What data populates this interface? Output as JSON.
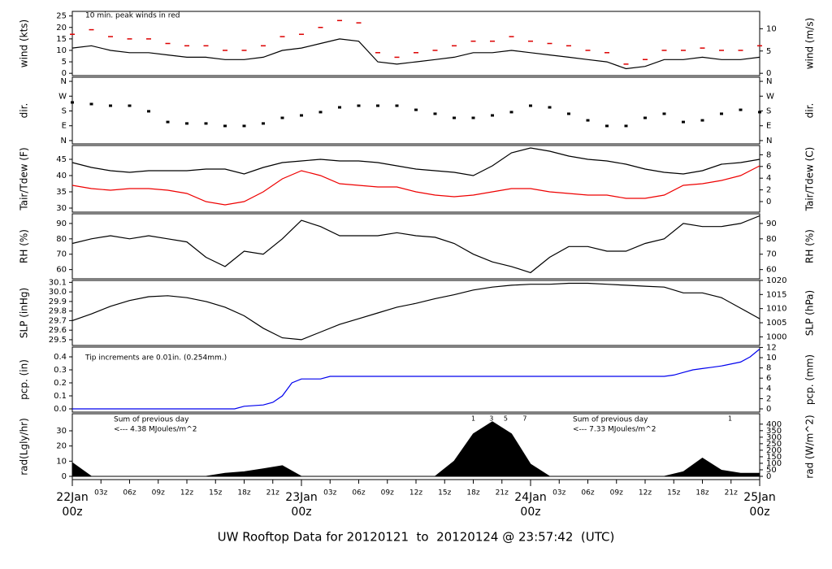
{
  "chart_data": [
    {
      "type": "line",
      "ylabel": "wind (kts)",
      "y2label": "wind (m/s)",
      "annotation": "10 min. peak winds in red",
      "annotation_color": "#dd0000",
      "xlim": [
        0,
        72
      ],
      "ylim": [
        -1,
        27
      ],
      "yticks": [
        0,
        5,
        10,
        15,
        20,
        25
      ],
      "y2lim": [
        -0.514,
        13.89
      ],
      "y2ticks": [
        0,
        5,
        10
      ],
      "x": [
        0,
        2,
        4,
        6,
        8,
        10,
        12,
        14,
        16,
        18,
        20,
        22,
        24,
        26,
        28,
        30,
        32,
        34,
        36,
        38,
        40,
        42,
        44,
        46,
        48,
        50,
        52,
        54,
        56,
        58,
        60,
        62,
        64,
        66,
        68,
        70,
        72
      ],
      "series": [
        {
          "type": "dash",
          "color": "#dd0000",
          "values": [
            17,
            19,
            16,
            15,
            15,
            13,
            12,
            12,
            10,
            10,
            12,
            16,
            17,
            20,
            23,
            22,
            9,
            7,
            9,
            10,
            12,
            14,
            14,
            16,
            14,
            13,
            12,
            10,
            9,
            4,
            6,
            10,
            10,
            11,
            10,
            10,
            12
          ]
        },
        {
          "type": "line",
          "color": "#000000",
          "values": [
            11,
            12,
            10,
            9,
            9,
            8,
            7,
            7,
            6,
            6,
            7,
            10,
            11,
            13,
            15,
            14,
            5,
            4,
            5,
            6,
            7,
            9,
            9,
            10,
            9,
            8,
            7,
            6,
            5,
            2,
            3,
            6,
            6,
            7,
            6,
            6,
            7
          ]
        }
      ]
    },
    {
      "type": "scatter",
      "ylabel": "dir.",
      "y2label": "dir.",
      "xlim": [
        0,
        72
      ],
      "ylim": [
        -20,
        385
      ],
      "yticks": [
        {
          "value": 0,
          "label": "N"
        },
        {
          "value": 90,
          "label": "E"
        },
        {
          "value": 180,
          "label": "S"
        },
        {
          "value": 270,
          "label": "W"
        },
        {
          "value": 360,
          "label": "N"
        }
      ],
      "y2lim": [
        -20,
        385
      ],
      "y2ticks": [
        {
          "value": 0,
          "label": "N"
        },
        {
          "value": 90,
          "label": "E"
        },
        {
          "value": 180,
          "label": "S"
        },
        {
          "value": 270,
          "label": "W"
        },
        {
          "value": 360,
          "label": "N"
        }
      ],
      "x": [
        0,
        2,
        4,
        6,
        8,
        10,
        12,
        14,
        16,
        18,
        20,
        22,
        24,
        26,
        28,
        30,
        32,
        34,
        36,
        38,
        40,
        42,
        44,
        46,
        48,
        50,
        52,
        54,
        56,
        58,
        60,
        62,
        64,
        66,
        68,
        70,
        72
      ],
      "series": [
        {
          "type": "dot",
          "color": "#000000",
          "values": [
            232,
            222,
            212,
            212,
            178,
            113,
            104,
            104,
            89,
            89,
            104,
            138,
            153,
            173,
            202,
            212,
            212,
            212,
            187,
            163,
            138,
            138,
            153,
            173,
            212,
            202,
            163,
            123,
            89,
            89,
            138,
            163,
            113,
            123,
            163,
            187,
            173
          ]
        }
      ]
    },
    {
      "type": "line",
      "ylabel": "Tair/Tdew (F)",
      "y2label": "Tair/Tdew (C)",
      "xlim": [
        0,
        72
      ],
      "ylim": [
        28.75,
        49.25
      ],
      "yticks": [
        30,
        35,
        40,
        45
      ],
      "y2lim": [
        -1.806,
        9.583
      ],
      "y2ticks": [
        0,
        2,
        4,
        6,
        8
      ],
      "x": [
        0,
        2,
        4,
        6,
        8,
        10,
        12,
        14,
        16,
        18,
        20,
        22,
        24,
        26,
        28,
        30,
        32,
        34,
        36,
        38,
        40,
        42,
        44,
        46,
        48,
        50,
        52,
        54,
        56,
        58,
        60,
        62,
        64,
        66,
        68,
        70,
        72
      ],
      "series": [
        {
          "type": "line",
          "color": "#000000",
          "values": [
            44,
            42.5,
            41.5,
            41,
            41.5,
            41.5,
            41.5,
            42,
            42,
            40.5,
            42.5,
            44,
            44.5,
            45,
            44.5,
            44.5,
            44,
            43,
            42,
            41.5,
            41,
            40,
            43,
            47,
            48.5,
            47.5,
            46,
            45,
            44.5,
            43.5,
            42,
            41,
            40.5,
            41.5,
            43.5,
            44,
            45
          ]
        },
        {
          "type": "line",
          "color": "#ee0000",
          "values": [
            37,
            36,
            35.5,
            36,
            36,
            35.5,
            34.5,
            32,
            31,
            32,
            35,
            39,
            41.5,
            40,
            37.5,
            37,
            36.5,
            36.5,
            35,
            34,
            33.5,
            34,
            35,
            36,
            36,
            35,
            34.5,
            34,
            34,
            33,
            33,
            34,
            37,
            37.5,
            38.5,
            40,
            43
          ]
        }
      ]
    },
    {
      "type": "line",
      "ylabel": "RH (%)",
      "y2label": "RH (%)",
      "xlim": [
        0,
        72
      ],
      "ylim": [
        54,
        96.3
      ],
      "yticks": [
        60,
        70,
        80,
        90
      ],
      "y2lim": [
        54,
        96.3
      ],
      "y2ticks": [
        60,
        70,
        80,
        90
      ],
      "x": [
        0,
        2,
        4,
        6,
        8,
        10,
        12,
        14,
        16,
        18,
        20,
        22,
        24,
        26,
        28,
        30,
        32,
        34,
        36,
        38,
        40,
        42,
        44,
        46,
        48,
        50,
        52,
        54,
        56,
        58,
        60,
        62,
        64,
        66,
        68,
        70,
        72
      ],
      "series": [
        {
          "type": "line",
          "color": "#000000",
          "values": [
            77,
            80,
            82,
            80,
            82,
            80,
            78,
            68,
            62,
            72,
            70,
            80,
            92,
            88,
            82,
            82,
            82,
            84,
            82,
            81,
            77,
            70,
            65,
            62,
            58,
            68,
            75,
            75,
            72,
            72,
            77,
            80,
            90,
            88,
            88,
            90,
            95
          ]
        }
      ]
    },
    {
      "type": "line",
      "ylabel": "SLP (inHg)",
      "y2label": "SLP (hPa)",
      "xlim": [
        0,
        72
      ],
      "ylim": [
        29.44,
        30.12
      ],
      "yticks": [
        29.5,
        29.6,
        29.7,
        29.8,
        29.9,
        {
          "value": 30,
          "label": "30.0"
        },
        30.1
      ],
      "y2lim": [
        996.95,
        1019.98
      ],
      "y2ticks": [
        1000,
        1005,
        1010,
        1015,
        1020
      ],
      "x": [
        0,
        2,
        4,
        6,
        8,
        10,
        12,
        14,
        16,
        18,
        20,
        22,
        24,
        26,
        28,
        30,
        32,
        34,
        36,
        38,
        40,
        42,
        44,
        46,
        48,
        50,
        52,
        54,
        56,
        58,
        60,
        62,
        64,
        66,
        68,
        70,
        72
      ],
      "series": [
        {
          "type": "line",
          "color": "#000000",
          "values": [
            29.7,
            29.77,
            29.85,
            29.91,
            29.95,
            29.96,
            29.94,
            29.9,
            29.84,
            29.75,
            29.62,
            29.52,
            29.5,
            29.58,
            29.66,
            29.72,
            29.78,
            29.84,
            29.88,
            29.93,
            29.97,
            30.02,
            30.05,
            30.07,
            30.08,
            30.08,
            30.09,
            30.09,
            30.08,
            30.07,
            30.06,
            30.05,
            29.99,
            29.99,
            29.94,
            29.83,
            29.72
          ]
        }
      ]
    },
    {
      "type": "line",
      "ylabel": "pcp. (in)",
      "y2label": "pcp. (mm)",
      "annotation": "Tip increments are 0.01in. (0.254mm.)",
      "annotation_color": "#0000cc",
      "xlim": [
        0,
        72
      ],
      "ylim": [
        -0.025,
        0.475
      ],
      "yticks": [
        {
          "value": 0,
          "label": "0.0"
        },
        0.1,
        0.2,
        0.3,
        0.4
      ],
      "y2lim": [
        -0.635,
        12.065
      ],
      "y2ticks": [
        0,
        2,
        4,
        6,
        8,
        10,
        12
      ],
      "series": [
        {
          "type": "line",
          "color": "#0000ee",
          "x": [
            0,
            17,
            18,
            20,
            21,
            22,
            23,
            24,
            26,
            27,
            62,
            63,
            64,
            65,
            66,
            67,
            68,
            70,
            71,
            72
          ],
          "values": [
            0,
            0,
            0.02,
            0.03,
            0.05,
            0.1,
            0.2,
            0.23,
            0.23,
            0.25,
            0.25,
            0.26,
            0.28,
            0.3,
            0.31,
            0.32,
            0.33,
            0.36,
            0.4,
            0.46
          ]
        }
      ]
    },
    {
      "type": "area",
      "ylabel": "rad(Lgly/hr)",
      "y2label": "rad (W/m^2)",
      "annotation_color": "#9900cc",
      "annotations": [
        "Sum of previous day",
        "<--- 4.38 MJoules/m^2",
        "Sum of previous day",
        "<--- 7.33 MJoules/m^2"
      ],
      "markers": [
        {
          "x": 42,
          "label": 1
        },
        {
          "x": 43.9,
          "label": 3
        },
        {
          "x": 45.4,
          "label": 5
        },
        {
          "x": 47.4,
          "label": 7
        },
        {
          "x": 68.9,
          "label": 1
        }
      ],
      "xlim": [
        0,
        72
      ],
      "ylim": [
        -2.14,
        41.25
      ],
      "yticks": [
        0,
        10,
        20,
        30
      ],
      "y2lim": [
        -24.9,
        479.7
      ],
      "y2ticks": [
        0,
        50,
        100,
        150,
        200,
        250,
        300,
        350,
        400
      ],
      "x": [
        0,
        2,
        4,
        6,
        8,
        10,
        12,
        14,
        16,
        18,
        20,
        22,
        24,
        26,
        28,
        30,
        32,
        34,
        36,
        38,
        40,
        42,
        44,
        46,
        48,
        50,
        52,
        54,
        56,
        58,
        60,
        62,
        64,
        66,
        68,
        70,
        72
      ],
      "series": [
        {
          "type": "area",
          "color": "#000000",
          "values": [
            9,
            0,
            0,
            0,
            0,
            0,
            0,
            0,
            2,
            3,
            5,
            7,
            0,
            0,
            0,
            0,
            0,
            0,
            0,
            0,
            10,
            28,
            36,
            28,
            8,
            0,
            0,
            0,
            0,
            0,
            0,
            0,
            3,
            12,
            4,
            2,
            2
          ]
        }
      ],
      "xticks": [
        {
          "value": 3,
          "label": "03z"
        },
        {
          "value": 6,
          "label": "06z"
        },
        {
          "value": 9,
          "label": "09z"
        },
        {
          "value": 12,
          "label": "12z"
        },
        {
          "value": 15,
          "label": "15z"
        },
        {
          "value": 18,
          "label": "18z"
        },
        {
          "value": 21,
          "label": "21z"
        },
        {
          "value": 27,
          "label": "03z"
        },
        {
          "value": 30,
          "label": "06z"
        },
        {
          "value": 33,
          "label": "09z"
        },
        {
          "value": 36,
          "label": "12z"
        },
        {
          "value": 39,
          "label": "15z"
        },
        {
          "value": 42,
          "label": "18z"
        },
        {
          "value": 45,
          "label": "21z"
        },
        {
          "value": 51,
          "label": "03z"
        },
        {
          "value": 54,
          "label": "06z"
        },
        {
          "value": 57,
          "label": "09z"
        },
        {
          "value": 60,
          "label": "12z"
        },
        {
          "value": 63,
          "label": "15z"
        },
        {
          "value": 66,
          "label": "18z"
        },
        {
          "value": 69,
          "label": "21z"
        }
      ],
      "day_ticks": [
        {
          "value": 0,
          "label": "22Jan",
          "hour": "00z"
        },
        {
          "value": 24,
          "label": "23Jan",
          "hour": "00z"
        },
        {
          "value": 48,
          "label": "24Jan",
          "hour": "00z"
        },
        {
          "value": 72,
          "label": "25Jan",
          "hour": "00z"
        }
      ],
      "day_tick_color": "#dd0000"
    }
  ],
  "caption": "UW Rooftop Data for 20120121  to  20120124 @ 23:57:42  (UTC)",
  "caption_color": "#0000cc"
}
